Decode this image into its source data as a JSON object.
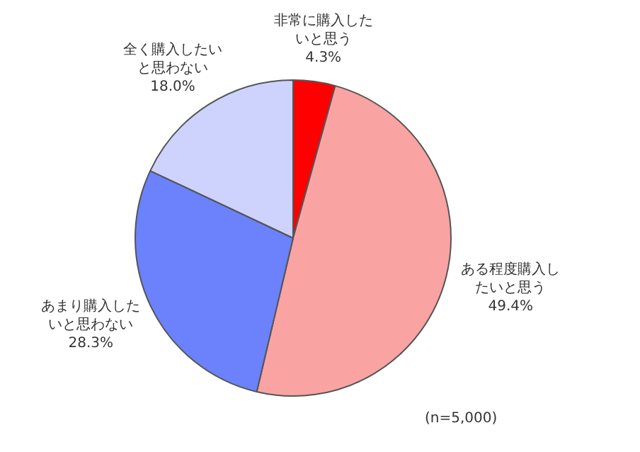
{
  "chart_data": {
    "type": "pie",
    "categories": [
      "非常に購入したいと思う",
      "ある程度購入したいと思う",
      "あまり購入したいと思わない",
      "全く購入したいと思わない"
    ],
    "values": [
      4.3,
      49.4,
      28.3,
      18.0
    ],
    "value_labels": [
      "4.3%",
      "49.4%",
      "28.3%",
      "18.0%"
    ],
    "colors": [
      "#ff0000",
      "#f9a3a3",
      "#6b82fc",
      "#cdd3fd"
    ],
    "legend": false,
    "annotations": [
      "(n=5,000)"
    ]
  }
}
